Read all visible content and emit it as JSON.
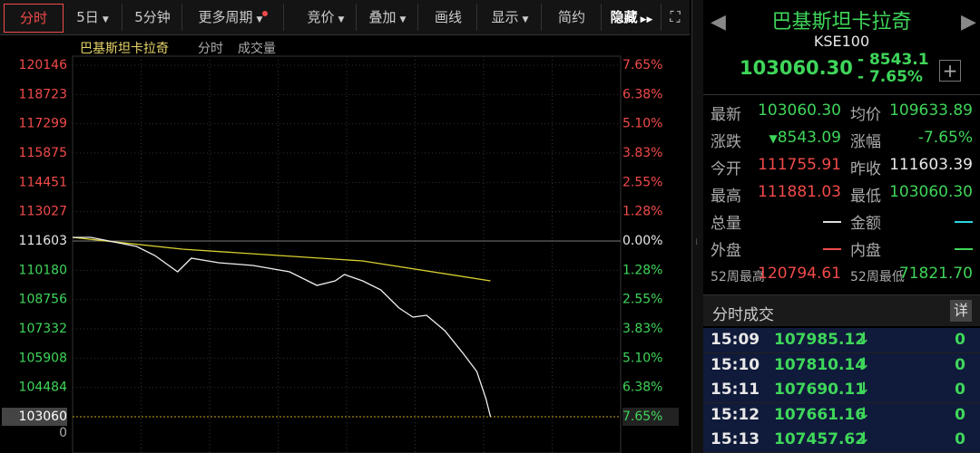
{
  "toolbar": {
    "items": [
      "分时",
      "5日",
      "5分钟",
      "更多周期",
      "竞价",
      "叠加",
      "画线",
      "显示",
      "简约",
      "隐藏"
    ]
  },
  "legend": {
    "name": "巴基斯坦卡拉奇",
    "mode": "分时",
    "volume": "成交量"
  },
  "chart": {
    "ylim": [
      103060,
      120146
    ],
    "yticks": [
      120146,
      118723,
      117299,
      115875,
      114451,
      113027,
      111603,
      110180,
      108756,
      107332,
      105908,
      104484,
      103060
    ],
    "pct_labels": [
      "7.65%",
      "6.38%",
      "5.10%",
      "3.83%",
      "2.55%",
      "1.28%",
      "0.00%",
      "1.28%",
      "2.55%",
      "3.83%",
      "5.10%",
      "6.38%",
      "7.65%"
    ],
    "volume_label": "0",
    "xlim": [
      0,
      240
    ],
    "price": {
      "x": [
        0,
        8,
        20,
        28,
        36,
        46,
        52,
        64,
        79,
        95,
        107,
        115,
        119,
        127,
        135,
        143,
        149,
        155,
        163,
        171,
        177,
        181,
        183
      ],
      "values": [
        111779,
        111779,
        111515,
        111339,
        110898,
        110106,
        110766,
        110546,
        110414,
        110106,
        109445,
        109665,
        109974,
        109665,
        109225,
        108344,
        107904,
        107992,
        107243,
        106142,
        105261,
        103940,
        103060
      ]
    },
    "avg": {
      "x": [
        0,
        48,
        127,
        183
      ],
      "values": [
        111779,
        111206,
        110634,
        109665
      ]
    }
  },
  "quote": {
    "name": "巴基斯坦卡拉奇",
    "code": "KSE100",
    "price": "103060.30",
    "change": "- 8543.1",
    "pct": "- 7.65%"
  },
  "stats": [
    [
      "最新",
      "103060.30",
      "均价",
      "109633.89"
    ],
    [
      "涨跌",
      "8543.09",
      "涨幅",
      "-7.65%"
    ],
    [
      "今开",
      "111755.91",
      "昨收",
      "111603.39"
    ],
    [
      "最高",
      "111881.03",
      "最低",
      "103060.30"
    ],
    [
      "总量",
      null,
      "金额",
      null
    ],
    [
      "外盘",
      null,
      "内盘",
      null
    ],
    [
      "52周最高",
      "120794.61",
      "52周最低",
      "71821.70"
    ]
  ],
  "trades": {
    "title": "分时成交",
    "detail": "详",
    "rows": [
      [
        "15:09",
        "107985.12",
        "0"
      ],
      [
        "15:10",
        "107810.14",
        "0"
      ],
      [
        "15:11",
        "107690.11",
        "0"
      ],
      [
        "15:12",
        "107661.16",
        "0"
      ],
      [
        "15:13",
        "107457.62",
        "0"
      ]
    ]
  }
}
